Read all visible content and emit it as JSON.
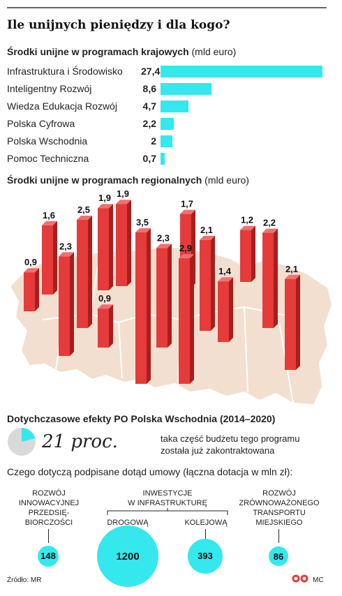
{
  "title": "Ile unijnych pieniędzy i dla kogo?",
  "national": {
    "heading_bold": "Środki unijne w programach krajowych",
    "heading_unit": " (mld euro)"
  },
  "regional": {
    "heading_bold": "Środki unijne w programach regionalnych",
    "heading_unit": " (mld euro)"
  },
  "chart_data": [
    {
      "type": "bar",
      "title": "Środki unijne w programach krajowych",
      "unit": "mld euro",
      "categories": [
        "Infrastruktura i Środowisko",
        "Inteligentny Rozwój",
        "Wiedza Edukacja Rozwój",
        "Polska Cyfrowa",
        "Polska Wschodnia",
        "Pomoc Techniczna"
      ],
      "labels": [
        "27,4",
        "8,6",
        "4,7",
        "2,2",
        "2",
        "0,7"
      ],
      "values": [
        27.4,
        8.6,
        4.7,
        2.2,
        2,
        0.7
      ]
    },
    {
      "type": "bar",
      "title": "Środki unijne w programach regionalnych",
      "unit": "mld euro",
      "labels": [
        "0,9",
        "1,6",
        "2,3",
        "2,5",
        "1,9",
        "0,9",
        "1,9",
        "3,5",
        "2,3",
        "1,7",
        "2,9",
        "2,1",
        "1,4",
        "1,2",
        "2,2",
        "2,1"
      ],
      "values": [
        0.9,
        1.6,
        2.3,
        2.5,
        1.9,
        0.9,
        1.9,
        3.5,
        2.3,
        1.7,
        2.9,
        2.1,
        1.4,
        1.2,
        2.2,
        2.1
      ]
    },
    {
      "type": "pie",
      "title": "Dotychczasowe efekty PO Polska Wschodnia (2014–2020)",
      "values": [
        21,
        79
      ]
    },
    {
      "type": "bubble",
      "title": "Czego dotyczą podpisane dotąd umowy (łączna dotacja w mln zł):",
      "labels": [
        "148",
        "1200",
        "393",
        "86"
      ],
      "values": [
        148,
        1200,
        393,
        86
      ]
    }
  ],
  "effects": {
    "heading": "Dotychczasowe efekty PO Polska Wschodnia (2014–2020)",
    "big": "21 proc.",
    "desc1": "taka część budżetu tego programu",
    "desc2": "została już zakontraktowana"
  },
  "contracts": {
    "heading": "Czego dotyczą podpisane dotąd umowy (łączna dotacja w mln zł):",
    "g1_l1": "ROZWÓJ",
    "g1_l2": "INNOWACYJNEJ",
    "g1_l3": "PRZEDSIĘ-",
    "g1_l4": "BIORCZOŚCI",
    "g2_l1": "INWESTYCJE",
    "g2_l2": "W INFRASTRUKTURĘ",
    "g2_a": "DROGOWĄ",
    "g2_b": "KOLEJOWĄ",
    "g3_l1": "ROZWÓJ",
    "g3_l2": "ZRÓWNOWAŻONEGO",
    "g3_l3": "TRANSPORTU",
    "g3_l4": "MIEJSKIEGO"
  },
  "source": "Źródło: MR",
  "credit": "MC",
  "colors": {
    "cyan": "#34e8ee",
    "red": "#e53b3b",
    "map": "#f2dfcf",
    "map_stroke": "#ffffff"
  }
}
